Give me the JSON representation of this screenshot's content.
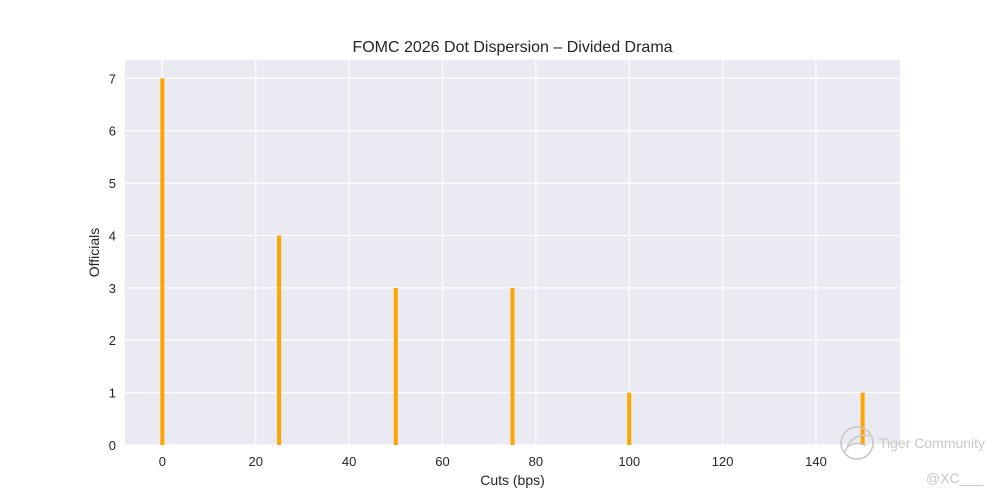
{
  "chart_data": {
    "type": "bar",
    "title": "FOMC 2026 Dot Dispersion – Divided Drama",
    "xlabel": "Cuts (bps)",
    "ylabel": "Officials",
    "x": [
      0,
      25,
      50,
      75,
      100,
      150
    ],
    "values": [
      7,
      4,
      3,
      3,
      1,
      1
    ],
    "xlim": [
      -8,
      158
    ],
    "ylim": [
      0,
      7.35
    ],
    "xticks": [
      0,
      20,
      40,
      60,
      80,
      100,
      120,
      140
    ],
    "yticks": [
      0,
      1,
      2,
      3,
      4,
      5,
      6,
      7
    ],
    "grid": true,
    "bar_color": "#FFA500",
    "plot_background": "#EAEAF2",
    "grid_color": "#FFFFFF"
  },
  "watermark": {
    "brand": "Tiger Community",
    "handle": "@XC___"
  }
}
